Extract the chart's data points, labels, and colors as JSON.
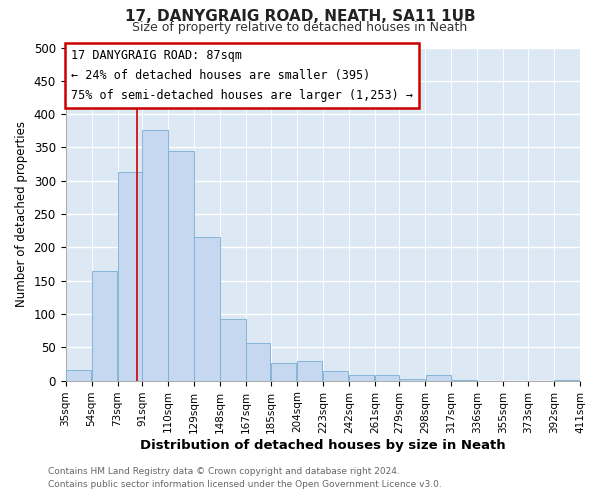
{
  "title": "17, DANYGRAIG ROAD, NEATH, SA11 1UB",
  "subtitle": "Size of property relative to detached houses in Neath",
  "xlabel": "Distribution of detached houses by size in Neath",
  "ylabel": "Number of detached properties",
  "bar_left_edges": [
    35,
    54,
    73,
    91,
    110,
    129,
    148,
    167,
    185,
    204,
    223,
    242,
    261,
    279,
    298,
    317,
    336,
    355,
    373,
    392
  ],
  "bar_widths": [
    19,
    19,
    18,
    19,
    19,
    19,
    19,
    18,
    19,
    19,
    19,
    19,
    18,
    19,
    19,
    19,
    19,
    18,
    19,
    19
  ],
  "bar_heights": [
    16,
    165,
    313,
    376,
    345,
    215,
    93,
    56,
    27,
    29,
    14,
    9,
    8,
    3,
    8,
    1,
    0,
    0,
    0,
    1
  ],
  "tick_labels": [
    "35sqm",
    "54sqm",
    "73sqm",
    "91sqm",
    "110sqm",
    "129sqm",
    "148sqm",
    "167sqm",
    "185sqm",
    "204sqm",
    "223sqm",
    "242sqm",
    "261sqm",
    "279sqm",
    "298sqm",
    "317sqm",
    "336sqm",
    "355sqm",
    "373sqm",
    "392sqm",
    "411sqm"
  ],
  "tick_positions": [
    35,
    54,
    73,
    91,
    110,
    129,
    148,
    167,
    185,
    204,
    223,
    242,
    261,
    279,
    298,
    317,
    336,
    355,
    373,
    392,
    411
  ],
  "xlim": [
    35,
    411
  ],
  "ylim": [
    0,
    500
  ],
  "yticks": [
    0,
    50,
    100,
    150,
    200,
    250,
    300,
    350,
    400,
    450,
    500
  ],
  "bar_color": "#c5d8f0",
  "bar_edge_color": "#7aaed4",
  "property_line_x": 87,
  "property_size_label": "17 DANYGRAIG ROAD: 87sqm",
  "annotation_line1": "← 24% of detached houses are smaller (395)",
  "annotation_line2": "75% of semi-detached houses are larger (1,253) →",
  "annotation_box_color": "#ffffff",
  "annotation_box_edge_color": "#cc0000",
  "vline_color": "#cc0000",
  "bg_color": "#ffffff",
  "plot_bg_color": "#dce9f5",
  "grid_color": "#ffffff",
  "footer_line1": "Contains HM Land Registry data © Crown copyright and database right 2024.",
  "footer_line2": "Contains public sector information licensed under the Open Government Licence v3.0."
}
